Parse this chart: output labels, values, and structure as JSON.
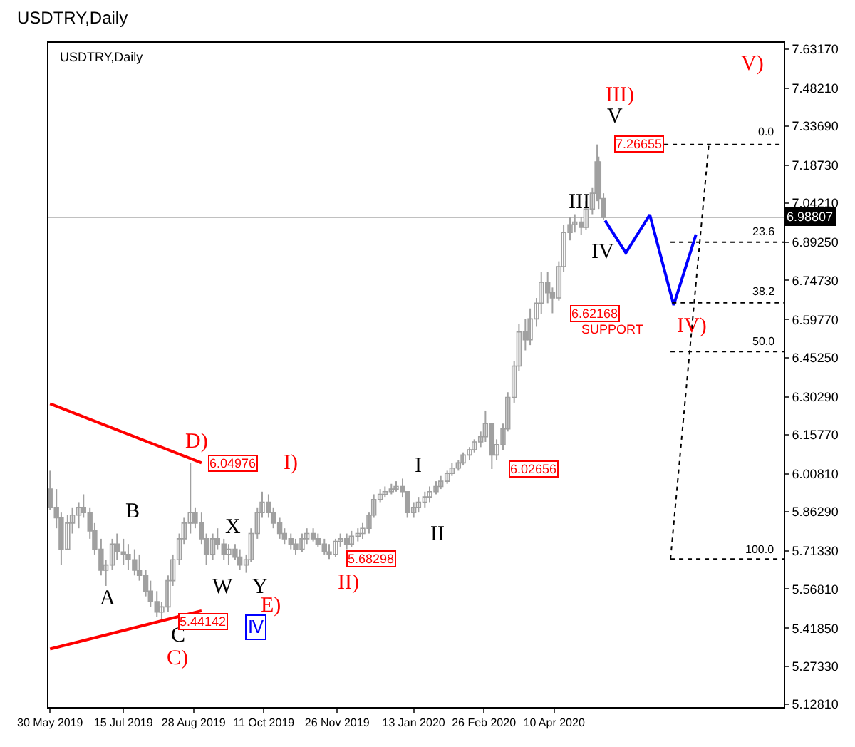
{
  "chart_data": {
    "type": "candlestick",
    "title": "USDTRY,Daily",
    "color": "#a0a0a0",
    "x": [
      "2019-05-30",
      "2019-06-03",
      "2019-06-06",
      "2019-06-10",
      "2019-06-13",
      "2019-06-17",
      "2019-06-20",
      "2019-06-24",
      "2019-06-27",
      "2019-07-01",
      "2019-07-04",
      "2019-07-08",
      "2019-07-11",
      "2019-07-15",
      "2019-07-18",
      "2019-07-22",
      "2019-07-25",
      "2019-07-29",
      "2019-08-01",
      "2019-08-05",
      "2019-08-08",
      "2019-08-12",
      "2019-08-15",
      "2019-08-19",
      "2019-08-22",
      "2019-08-26",
      "2019-08-29",
      "2019-09-02",
      "2019-09-05",
      "2019-09-09",
      "2019-09-12",
      "2019-09-16",
      "2019-09-19",
      "2019-09-23",
      "2019-09-26",
      "2019-09-30",
      "2019-10-03",
      "2019-10-07",
      "2019-10-10",
      "2019-10-14",
      "2019-10-17",
      "2019-10-21",
      "2019-10-24",
      "2019-10-28",
      "2019-10-31",
      "2019-11-04",
      "2019-11-07",
      "2019-11-11",
      "2019-11-14",
      "2019-11-18",
      "2019-11-21",
      "2019-11-25",
      "2019-11-28",
      "2019-12-02",
      "2019-12-05",
      "2019-12-09",
      "2019-12-12",
      "2019-12-16",
      "2019-12-19",
      "2019-12-23",
      "2019-12-26",
      "2019-12-30",
      "2020-01-02",
      "2020-01-06",
      "2020-01-09",
      "2020-01-13",
      "2020-01-16",
      "2020-01-20",
      "2020-01-23",
      "2020-01-27",
      "2020-01-30",
      "2020-02-03",
      "2020-02-06",
      "2020-02-10",
      "2020-02-13",
      "2020-02-17",
      "2020-02-20",
      "2020-02-24",
      "2020-02-27",
      "2020-03-02",
      "2020-03-05",
      "2020-03-09",
      "2020-03-12",
      "2020-03-16",
      "2020-03-19",
      "2020-03-23",
      "2020-03-26",
      "2020-03-30",
      "2020-04-02",
      "2020-04-06",
      "2020-04-09",
      "2020-04-13",
      "2020-04-16",
      "2020-04-20",
      "2020-04-23",
      "2020-04-27",
      "2020-04-30",
      "2020-05-04",
      "2020-05-07",
      "2020-05-08",
      "2020-05-11"
    ],
    "ohlc": [
      [
        5.95,
        6.02,
        5.87,
        5.88
      ],
      [
        5.88,
        5.95,
        5.8,
        5.84
      ],
      [
        5.84,
        5.86,
        5.66,
        5.72
      ],
      [
        5.72,
        5.85,
        5.72,
        5.82
      ],
      [
        5.82,
        5.88,
        5.78,
        5.85
      ],
      [
        5.85,
        5.9,
        5.8,
        5.88
      ],
      [
        5.88,
        5.93,
        5.84,
        5.86
      ],
      [
        5.86,
        5.88,
        5.76,
        5.79
      ],
      [
        5.79,
        5.82,
        5.7,
        5.72
      ],
      [
        5.72,
        5.76,
        5.62,
        5.64
      ],
      [
        5.64,
        5.68,
        5.58,
        5.66
      ],
      [
        5.66,
        5.76,
        5.64,
        5.74
      ],
      [
        5.74,
        5.78,
        5.68,
        5.71
      ],
      [
        5.71,
        5.76,
        5.66,
        5.7
      ],
      [
        5.7,
        5.74,
        5.64,
        5.68
      ],
      [
        5.68,
        5.72,
        5.62,
        5.64
      ],
      [
        5.64,
        5.7,
        5.6,
        5.62
      ],
      [
        5.62,
        5.64,
        5.54,
        5.56
      ],
      [
        5.56,
        5.6,
        5.5,
        5.52
      ],
      [
        5.52,
        5.56,
        5.46,
        5.48
      ],
      [
        5.48,
        5.52,
        5.44142,
        5.5
      ],
      [
        5.5,
        5.62,
        5.48,
        5.6
      ],
      [
        5.6,
        5.7,
        5.58,
        5.68
      ],
      [
        5.68,
        5.78,
        5.66,
        5.76
      ],
      [
        5.76,
        5.84,
        5.74,
        5.82
      ],
      [
        5.82,
        6.04976,
        5.78,
        5.86
      ],
      [
        5.86,
        5.88,
        5.8,
        5.82
      ],
      [
        5.82,
        5.86,
        5.74,
        5.76
      ],
      [
        5.76,
        5.78,
        5.66,
        5.7
      ],
      [
        5.7,
        5.78,
        5.68,
        5.76
      ],
      [
        5.76,
        5.8,
        5.72,
        5.74
      ],
      [
        5.74,
        5.76,
        5.68,
        5.7
      ],
      [
        5.7,
        5.74,
        5.66,
        5.72
      ],
      [
        5.72,
        5.74,
        5.68,
        5.69
      ],
      [
        5.69,
        5.72,
        5.64,
        5.66
      ],
      [
        5.66,
        5.7,
        5.63,
        5.68
      ],
      [
        5.68,
        5.8,
        5.67,
        5.78
      ],
      [
        5.78,
        5.88,
        5.76,
        5.86
      ],
      [
        5.86,
        5.94,
        5.84,
        5.9
      ],
      [
        5.9,
        5.93,
        5.84,
        5.86
      ],
      [
        5.86,
        5.88,
        5.8,
        5.82
      ],
      [
        5.82,
        5.84,
        5.76,
        5.78
      ],
      [
        5.78,
        5.8,
        5.74,
        5.76
      ],
      [
        5.76,
        5.78,
        5.72,
        5.74
      ],
      [
        5.74,
        5.76,
        5.7,
        5.72
      ],
      [
        5.72,
        5.78,
        5.71,
        5.76
      ],
      [
        5.76,
        5.8,
        5.74,
        5.78
      ],
      [
        5.78,
        5.8,
        5.75,
        5.76
      ],
      [
        5.76,
        5.78,
        5.73,
        5.74
      ],
      [
        5.74,
        5.76,
        5.7,
        5.71
      ],
      [
        5.71,
        5.74,
        5.68298,
        5.7
      ],
      [
        5.7,
        5.76,
        5.69,
        5.75
      ],
      [
        5.75,
        5.78,
        5.73,
        5.76
      ],
      [
        5.76,
        5.78,
        5.72,
        5.74
      ],
      [
        5.74,
        5.79,
        5.73,
        5.77
      ],
      [
        5.77,
        5.8,
        5.75,
        5.78
      ],
      [
        5.78,
        5.82,
        5.76,
        5.8
      ],
      [
        5.8,
        5.86,
        5.78,
        5.85
      ],
      [
        5.85,
        5.93,
        5.84,
        5.91
      ],
      [
        5.91,
        5.95,
        5.9,
        5.93
      ],
      [
        5.93,
        5.96,
        5.92,
        5.94
      ],
      [
        5.94,
        5.97,
        5.93,
        5.95
      ],
      [
        5.95,
        5.98,
        5.94,
        5.96
      ],
      [
        5.96,
        5.99,
        5.92,
        5.94
      ],
      [
        5.94,
        5.94,
        5.84,
        5.86
      ],
      [
        5.86,
        5.9,
        5.84,
        5.88
      ],
      [
        5.88,
        5.92,
        5.86,
        5.9
      ],
      [
        5.9,
        5.94,
        5.88,
        5.92
      ],
      [
        5.92,
        5.96,
        5.9,
        5.94
      ],
      [
        5.94,
        5.98,
        5.93,
        5.96
      ],
      [
        5.96,
        6.0,
        5.95,
        5.98
      ],
      [
        5.98,
        6.02,
        5.97,
        6.01
      ],
      [
        6.01,
        6.05,
        6.0,
        6.03
      ],
      [
        6.03,
        6.06,
        6.02,
        6.05
      ],
      [
        6.05,
        6.09,
        6.04,
        6.08
      ],
      [
        6.08,
        6.11,
        6.06,
        6.1
      ],
      [
        6.1,
        6.14,
        6.09,
        6.13
      ],
      [
        6.13,
        6.17,
        6.11,
        6.15
      ],
      [
        6.15,
        6.25,
        6.13,
        6.2
      ],
      [
        6.2,
        6.2,
        6.02656,
        6.08
      ],
      [
        6.08,
        6.14,
        6.06,
        6.12
      ],
      [
        6.12,
        6.2,
        6.1,
        6.18
      ],
      [
        6.18,
        6.32,
        6.17,
        6.3
      ],
      [
        6.3,
        6.44,
        6.28,
        6.42
      ],
      [
        6.42,
        6.58,
        6.4,
        6.55
      ],
      [
        6.55,
        6.6,
        6.48,
        6.52
      ],
      [
        6.52,
        6.64,
        6.5,
        6.6
      ],
      [
        6.6,
        6.68,
        6.57,
        6.66
      ],
      [
        6.66,
        6.78,
        6.62,
        6.74
      ],
      [
        6.74,
        6.78,
        6.66,
        6.7
      ],
      [
        6.7,
        6.72,
        6.62168,
        6.68
      ],
      [
        6.68,
        6.82,
        6.67,
        6.8
      ],
      [
        6.8,
        6.96,
        6.78,
        6.93
      ],
      [
        6.93,
        6.99,
        6.9,
        6.96
      ],
      [
        6.96,
        7.0,
        6.93,
        6.97
      ],
      [
        6.97,
        6.99,
        6.92,
        6.95
      ],
      [
        6.95,
        7.05,
        6.94,
        7.02
      ],
      [
        7.02,
        7.1,
        7.0,
        7.08
      ],
      [
        7.08,
        7.26655,
        7.05,
        7.2
      ],
      [
        7.2,
        7.22,
        7.02,
        7.06
      ],
      [
        7.06,
        7.08,
        6.98,
        6.98807
      ]
    ],
    "series": [
      {
        "type": "line",
        "x": [
          "2019-05-30",
          "2019-09-02"
        ],
        "values": [
          6.276,
          6.05
        ],
        "color": "#ff0000",
        "line_style": "solid"
      },
      {
        "type": "line",
        "x": [
          "2019-05-30",
          "2019-09-02"
        ],
        "values": [
          5.339,
          5.485
        ],
        "color": "#ff0000",
        "line_style": "solid"
      },
      {
        "type": "line",
        "x": [
          "2020-05-12",
          "2020-05-25",
          "2020-06-09",
          "2020-06-24",
          "2020-07-08"
        ],
        "values": [
          6.976,
          6.852,
          6.998,
          6.653,
          6.923
        ],
        "color": "#0000ff",
        "line_style": "solid"
      },
      {
        "type": "line",
        "x": [
          "2020-06-18",
          "2020-09-01"
        ],
        "values": [
          7.26655,
          7.26655
        ],
        "color": "#000000",
        "line_style": "dotted"
      },
      {
        "type": "line",
        "x": [
          "2020-06-22",
          "2020-09-01"
        ],
        "values": [
          6.893,
          6.893
        ],
        "color": "#000000",
        "line_style": "dotted"
      },
      {
        "type": "line",
        "x": [
          "2020-06-23",
          "2020-09-01"
        ],
        "values": [
          6.662,
          6.662
        ],
        "color": "#000000",
        "line_style": "dotted"
      },
      {
        "type": "line",
        "x": [
          "2020-06-22",
          "2020-09-01"
        ],
        "values": [
          6.475,
          6.475
        ],
        "color": "#000000",
        "line_style": "dotted"
      },
      {
        "type": "line",
        "x": [
          "2020-06-22",
          "2020-09-01"
        ],
        "values": [
          5.68298,
          5.68298
        ],
        "color": "#000000",
        "line_style": "dotted"
      },
      {
        "type": "line",
        "x": [
          "2020-06-22",
          "2020-07-16"
        ],
        "values": [
          5.68298,
          7.26655
        ],
        "color": "#000000",
        "line_style": "dotted"
      }
    ],
    "xlim": [
      "2019-05-29",
      "2020-09-01"
    ],
    "xticks": [
      {
        "value": "2019-05-30",
        "label": "30 May 2019"
      },
      {
        "value": "2019-07-15",
        "label": "15 Jul 2019"
      },
      {
        "value": "2019-08-28",
        "label": "28 Aug 2019"
      },
      {
        "value": "2019-10-11",
        "label": "11 Oct 2019"
      },
      {
        "value": "2019-11-26",
        "label": "26 Nov 2019"
      },
      {
        "value": "2020-01-13",
        "label": "13 Jan 2020"
      },
      {
        "value": "2020-02-26",
        "label": "26 Feb 2020"
      },
      {
        "value": "2020-04-10",
        "label": "10 Apr 2020"
      }
    ],
    "ylim": [
      5.117,
      7.655
    ],
    "yticks": [
      {
        "value": 7.6317,
        "label": "7.63170"
      },
      {
        "value": 7.4821,
        "label": "7.48210"
      },
      {
        "value": 7.3369,
        "label": "7.33690"
      },
      {
        "value": 7.1873,
        "label": "7.18730"
      },
      {
        "value": 7.0421,
        "label": "7.04210"
      },
      {
        "value": 6.8925,
        "label": "6.89250"
      },
      {
        "value": 6.7473,
        "label": "6.74730"
      },
      {
        "value": 6.5977,
        "label": "6.59770"
      },
      {
        "value": 6.4525,
        "label": "6.45250"
      },
      {
        "value": 6.3029,
        "label": "6.30290"
      },
      {
        "value": 6.1577,
        "label": "6.15770"
      },
      {
        "value": 6.0081,
        "label": "6.00810"
      },
      {
        "value": 5.8629,
        "label": "5.86290"
      },
      {
        "value": 5.7133,
        "label": "5.71330"
      },
      {
        "value": 5.5681,
        "label": "5.56810"
      },
      {
        "value": 5.4185,
        "label": "5.41850"
      },
      {
        "value": 5.2733,
        "label": "5.27330"
      },
      {
        "value": 5.1281,
        "label": "5.12810"
      }
    ],
    "ref_lines": [
      {
        "axis": "y",
        "value": 6.98807,
        "label": "6.98807",
        "color": "#c0c0c0",
        "line_style": "solid"
      }
    ],
    "annotations": [
      "USDTRY,Daily",
      "A",
      "B",
      "C",
      "C)",
      "D)",
      "W",
      "X",
      "Y",
      "E)",
      "Ⅳ",
      "I)",
      "II)",
      "I",
      "II",
      "III",
      "IV",
      "V",
      "III)",
      "IV)",
      "V)",
      "SUPPORT",
      "0.0",
      "23.6",
      "38.2",
      "50.0",
      "100.0",
      {
        "text": "6.04976",
        "x": "2019-08-26",
        "y": 6.04976
      },
      {
        "text": "5.44142",
        "x": "2019-08-08",
        "y": 5.44142
      },
      {
        "text": "5.68298",
        "x": "2019-11-21",
        "y": 5.68298
      },
      {
        "text": "6.02656",
        "x": "2020-03-02",
        "y": 6.02656
      },
      {
        "text": "6.62168",
        "x": "2020-04-09",
        "y": 6.62168
      },
      {
        "text": "7.26655",
        "x": "2020-05-07",
        "y": 7.26655
      }
    ],
    "grid": false
  }
}
